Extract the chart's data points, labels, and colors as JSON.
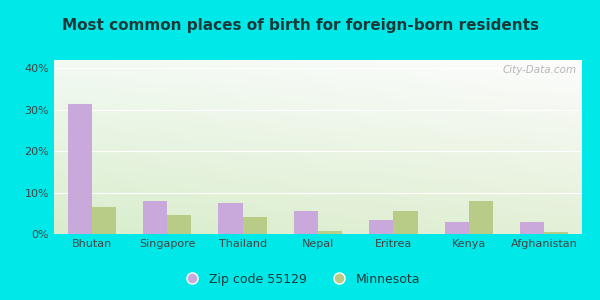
{
  "title": "Most common places of birth for foreign-born residents",
  "categories": [
    "Bhutan",
    "Singapore",
    "Thailand",
    "Nepal",
    "Eritrea",
    "Kenya",
    "Afghanistan"
  ],
  "zip_values": [
    31.5,
    8.0,
    7.5,
    5.5,
    3.5,
    3.0,
    3.0
  ],
  "mn_values": [
    6.5,
    4.5,
    4.0,
    0.8,
    5.5,
    8.0,
    0.5
  ],
  "zip_color": "#c9a8dc",
  "mn_color": "#b8cc88",
  "background_outer": "#00e8e8",
  "ylim": [
    0,
    42
  ],
  "yticks": [
    0,
    10,
    20,
    30,
    40
  ],
  "ytick_labels": [
    "0%",
    "10%",
    "20%",
    "30%",
    "40%"
  ],
  "legend_zip_label": "Zip code 55129",
  "legend_mn_label": "Minnesota",
  "watermark": "City-Data.com",
  "title_fontsize": 11,
  "tick_fontsize": 8,
  "legend_fontsize": 9,
  "bar_width": 0.32,
  "grid_color": "#ffffff",
  "title_color": "#1a3a3a"
}
